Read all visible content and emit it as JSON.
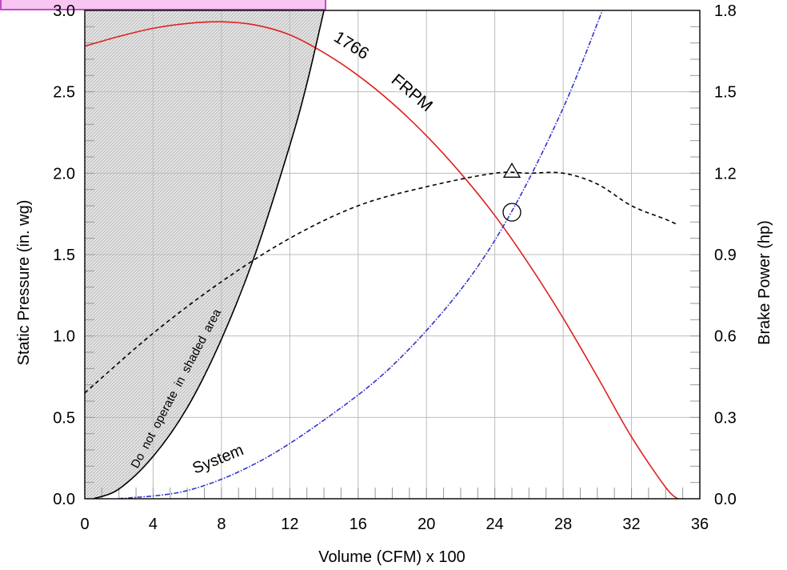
{
  "chart_data": {
    "type": "line",
    "xlabel": "Volume (CFM) x 100",
    "ylabel_left": "Static Pressure (in. wg)",
    "ylabel_right": "Brake Power (hp)",
    "xlim": [
      0,
      36
    ],
    "ylim_left": [
      0,
      3.0
    ],
    "ylim_right": [
      0,
      1.8
    ],
    "x_ticks": [
      0,
      4,
      8,
      12,
      16,
      20,
      24,
      28,
      32,
      36
    ],
    "y_ticks_left": [
      "0.0",
      "0.5",
      "1.0",
      "1.5",
      "2.0",
      "2.5",
      "3.0"
    ],
    "y_ticks_right": [
      "0.0",
      "0.3",
      "0.6",
      "0.9",
      "1.2",
      "1.5",
      "1.8"
    ],
    "grid": true,
    "annotations": {
      "fan_speed": "1766",
      "fan_unit": "FRPM",
      "system": "System",
      "shaded_note": "Do not operate in shaded area"
    },
    "series": [
      {
        "color": "#e02020",
        "axis": "left",
        "style": "solid",
        "x": [
          0,
          2,
          4,
          6,
          8,
          10,
          12,
          14,
          16,
          18,
          20,
          22,
          24,
          26,
          28,
          30,
          32,
          34,
          34.7
        ],
        "y": [
          2.78,
          2.84,
          2.89,
          2.92,
          2.93,
          2.91,
          2.85,
          2.74,
          2.6,
          2.43,
          2.23,
          2.0,
          1.74,
          1.44,
          1.11,
          0.75,
          0.38,
          0.07,
          0.0
        ]
      },
      {
        "color": "#000000",
        "axis": "right",
        "style": "dashed",
        "x": [
          0,
          4,
          8,
          12,
          16,
          20,
          24,
          26,
          28,
          30,
          32,
          34,
          34.7
        ],
        "y": [
          0.39,
          0.61,
          0.8,
          0.96,
          1.08,
          1.15,
          1.2,
          1.2,
          1.2,
          1.16,
          1.08,
          1.03,
          1.01
        ]
      },
      {
        "color": "#3333cc",
        "axis": "right",
        "style": "dash-dot",
        "x": [
          2,
          6,
          10,
          14,
          18,
          22,
          25,
          28,
          30.3
        ],
        "y": [
          0.0,
          0.03,
          0.13,
          0.29,
          0.49,
          0.77,
          1.06,
          1.44,
          1.8
        ]
      },
      {
        "color": "#000000",
        "axis": "left",
        "style": "solid",
        "x": [
          0.5,
          2,
          4,
          6,
          8,
          10,
          12,
          13,
          14
        ],
        "y": [
          0.0,
          0.06,
          0.26,
          0.56,
          0.98,
          1.51,
          2.17,
          2.55,
          3.0
        ]
      }
    ],
    "markers": [
      {
        "shape": "triangle",
        "x": 25.0,
        "y": 2.01
      },
      {
        "shape": "circle",
        "x": 25.0,
        "y": 1.76
      }
    ]
  }
}
